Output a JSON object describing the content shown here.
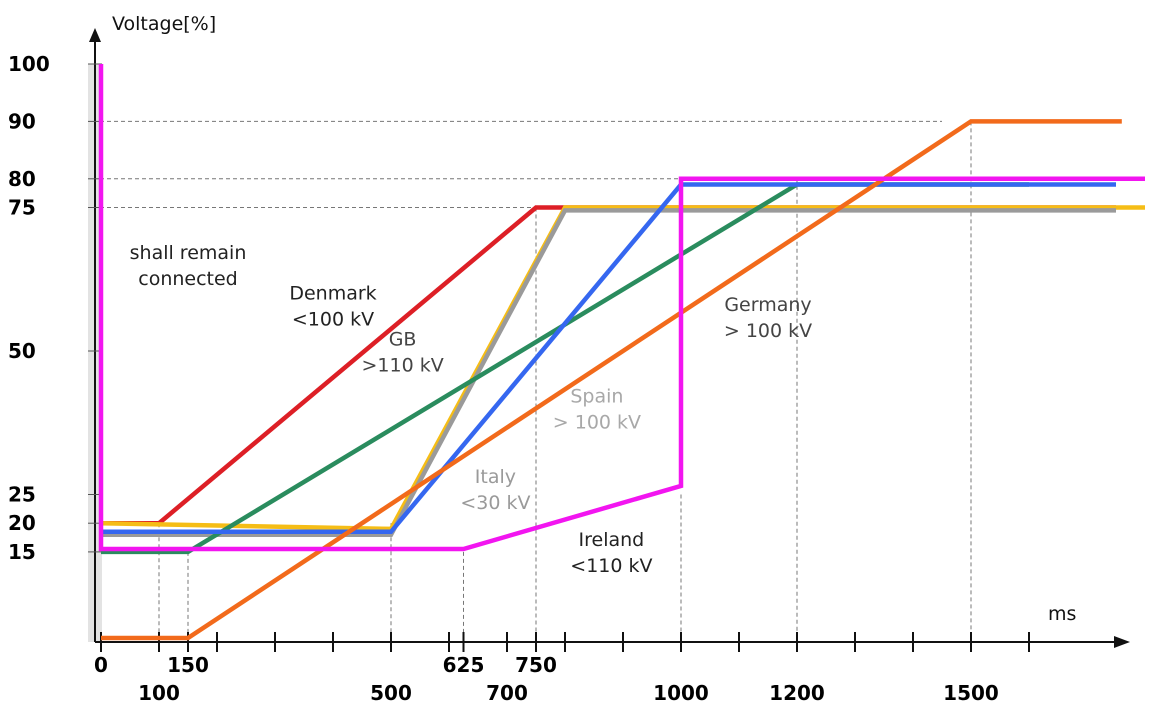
{
  "chart_data": {
    "type": "line",
    "ylabel": "Voltage[%]",
    "xlabel": "ms",
    "xlim": [
      0,
      1700
    ],
    "ylim": [
      0,
      100
    ],
    "grid": "dashed reference lines at marked values",
    "yticks": [
      {
        "value": 100,
        "label": "100"
      },
      {
        "value": 90,
        "label": "90"
      },
      {
        "value": 80,
        "label": "80"
      },
      {
        "value": 75,
        "label": "75"
      },
      {
        "value": 50,
        "label": "50"
      },
      {
        "value": 25,
        "label": "25"
      },
      {
        "value": 20,
        "label": "20"
      },
      {
        "value": 15,
        "label": "15"
      }
    ],
    "xticks_top": [
      {
        "value": 0,
        "label": "0"
      },
      {
        "value": 150,
        "label": "150"
      },
      {
        "value": 625,
        "label": "625"
      },
      {
        "value": 750,
        "label": "750"
      }
    ],
    "xticks_bottom": [
      {
        "value": 100,
        "label": "100"
      },
      {
        "value": 500,
        "label": "500"
      },
      {
        "value": 700,
        "label": "700"
      },
      {
        "value": 1000,
        "label": "1000"
      },
      {
        "value": 1200,
        "label": "1200"
      },
      {
        "value": 1500,
        "label": "1500"
      }
    ],
    "minor_ticks": [
      0,
      100,
      150,
      200,
      300,
      400,
      500,
      600,
      625,
      700,
      750,
      800,
      900,
      1000,
      1100,
      1200,
      1300,
      1400,
      1500,
      1600
    ],
    "vguides": [
      {
        "x": 100,
        "y": 20
      },
      {
        "x": 150,
        "y": 15
      },
      {
        "x": 500,
        "y": 20
      },
      {
        "x": 625,
        "y": 15
      },
      {
        "x": 750,
        "y": 75
      },
      {
        "x": 1000,
        "y": 25
      },
      {
        "x": 1200,
        "y": 80
      },
      {
        "x": 1500,
        "y": 90
      }
    ],
    "hguides": [
      {
        "y": 90,
        "x_end": 1450
      },
      {
        "y": 80,
        "x_end": 1000
      },
      {
        "y": 75,
        "x_end": 750
      }
    ],
    "series": [
      {
        "name": "Denmark <100 kV",
        "color": "#dd1f26",
        "points": [
          [
            0,
            20
          ],
          [
            100,
            20
          ],
          [
            750,
            75
          ],
          [
            1750,
            75
          ]
        ]
      },
      {
        "name": "GB >110 kV",
        "color": "#f5bd16",
        "points": [
          [
            0,
            20
          ],
          [
            500,
            19
          ],
          [
            800,
            75
          ],
          [
            1800,
            75
          ]
        ]
      },
      {
        "name": "Italy <30 kV",
        "color": "#9a9a9a",
        "points": [
          [
            0,
            18
          ],
          [
            500,
            18
          ],
          [
            800,
            74.5
          ],
          [
            1750,
            74.5
          ]
        ]
      },
      {
        "name": "Germany > 100 kV",
        "color": "#2a8c5e",
        "points": [
          [
            0,
            15
          ],
          [
            150,
            15
          ],
          [
            1200,
            79
          ],
          [
            1600,
            79
          ]
        ]
      },
      {
        "name": "Spain > 100 kV",
        "color": "#3567f0",
        "points": [
          [
            0,
            18.5
          ],
          [
            500,
            18.5
          ],
          [
            1000,
            79
          ],
          [
            1750,
            79
          ]
        ]
      },
      {
        "name": "Germany > 100 kV",
        "color": "#f26a1b",
        "points": [
          [
            0,
            0
          ],
          [
            150,
            0
          ],
          [
            1500,
            90
          ],
          [
            1760,
            90
          ]
        ]
      },
      {
        "name": "Ireland <110 kV",
        "color": "#f215f0",
        "points": [
          [
            0,
            100
          ],
          [
            0,
            15.5
          ],
          [
            625,
            15.5
          ],
          [
            1000,
            26.5
          ],
          [
            1000,
            80
          ],
          [
            1800,
            80
          ]
        ]
      }
    ],
    "annotations": [
      {
        "lines": [
          "shall remain",
          "connected"
        ],
        "at": [
          150,
          66
        ],
        "color": "#222222"
      },
      {
        "lines": [
          "Denmark",
          "<100 kV"
        ],
        "at": [
          400,
          59
        ],
        "color": "#222222"
      },
      {
        "lines": [
          "GB",
          ">110 kV"
        ],
        "at": [
          520,
          51
        ],
        "color": "#444444"
      },
      {
        "lines": [
          "Spain",
          "> 100 kV"
        ],
        "at": [
          855,
          41
        ],
        "color": "#a8a8a8"
      },
      {
        "lines": [
          "Italy",
          "<30 kV"
        ],
        "at": [
          680,
          27
        ],
        "color": "#9a9a9a"
      },
      {
        "lines": [
          "Ireland",
          "<110 kV"
        ],
        "at": [
          880,
          16
        ],
        "color": "#222222"
      },
      {
        "lines": [
          "Germany",
          "> 100 kV"
        ],
        "at": [
          1150,
          57
        ],
        "color": "#444444"
      }
    ]
  }
}
